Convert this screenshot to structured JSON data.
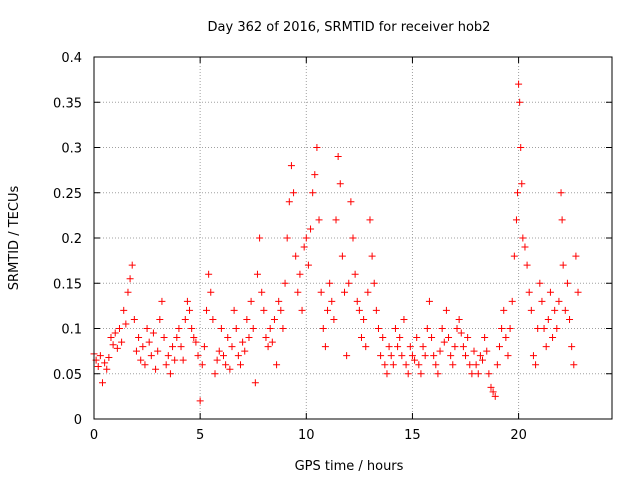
{
  "chart_data": {
    "type": "scatter",
    "title": "Day 362 of 2016, SRMTID for receiver hob2",
    "xlabel": "GPS time / hours",
    "ylabel": "SRMTID / TECUs",
    "xlim": [
      0,
      24.4
    ],
    "ylim": [
      0,
      0.4
    ],
    "xticks": [
      0,
      5,
      10,
      15,
      20
    ],
    "yticks": [
      0,
      0.05,
      0.1,
      0.15,
      0.2,
      0.25,
      0.3,
      0.35,
      0.4
    ],
    "xtick_labels": [
      "0",
      "5",
      "10",
      "15",
      "20"
    ],
    "ytick_labels": [
      "0",
      "0.05",
      "0.1",
      "0.15",
      "0.2",
      "0.25",
      "0.3",
      "0.35",
      "0.4"
    ],
    "grid": true,
    "marker": "plus",
    "series_color": "#ff0000",
    "series": [
      {
        "name": "hob2",
        "points": [
          [
            0.0,
            0.072
          ],
          [
            0.1,
            0.065
          ],
          [
            0.2,
            0.058
          ],
          [
            0.3,
            0.07
          ],
          [
            0.4,
            0.04
          ],
          [
            0.5,
            0.062
          ],
          [
            0.6,
            0.055
          ],
          [
            0.7,
            0.068
          ],
          [
            0.8,
            0.09
          ],
          [
            0.9,
            0.082
          ],
          [
            1.0,
            0.095
          ],
          [
            1.1,
            0.078
          ],
          [
            1.2,
            0.1
          ],
          [
            1.3,
            0.085
          ],
          [
            1.4,
            0.12
          ],
          [
            1.5,
            0.105
          ],
          [
            1.6,
            0.14
          ],
          [
            1.7,
            0.155
          ],
          [
            1.8,
            0.17
          ],
          [
            1.9,
            0.11
          ],
          [
            2.0,
            0.075
          ],
          [
            2.1,
            0.09
          ],
          [
            2.2,
            0.065
          ],
          [
            2.3,
            0.08
          ],
          [
            2.4,
            0.06
          ],
          [
            2.5,
            0.1
          ],
          [
            2.6,
            0.085
          ],
          [
            2.7,
            0.07
          ],
          [
            2.8,
            0.095
          ],
          [
            2.9,
            0.055
          ],
          [
            3.0,
            0.075
          ],
          [
            3.1,
            0.11
          ],
          [
            3.2,
            0.13
          ],
          [
            3.3,
            0.09
          ],
          [
            3.4,
            0.06
          ],
          [
            3.5,
            0.07
          ],
          [
            3.6,
            0.05
          ],
          [
            3.7,
            0.08
          ],
          [
            3.8,
            0.065
          ],
          [
            3.9,
            0.09
          ],
          [
            4.0,
            0.1
          ],
          [
            4.1,
            0.08
          ],
          [
            4.2,
            0.065
          ],
          [
            4.3,
            0.11
          ],
          [
            4.4,
            0.13
          ],
          [
            4.5,
            0.12
          ],
          [
            4.6,
            0.1
          ],
          [
            4.7,
            0.09
          ],
          [
            4.8,
            0.085
          ],
          [
            4.9,
            0.07
          ],
          [
            5.0,
            0.02
          ],
          [
            5.1,
            0.06
          ],
          [
            5.2,
            0.08
          ],
          [
            5.3,
            0.12
          ],
          [
            5.4,
            0.16
          ],
          [
            5.5,
            0.14
          ],
          [
            5.6,
            0.11
          ],
          [
            5.7,
            0.05
          ],
          [
            5.8,
            0.065
          ],
          [
            5.9,
            0.075
          ],
          [
            6.0,
            0.1
          ],
          [
            6.1,
            0.07
          ],
          [
            6.2,
            0.06
          ],
          [
            6.3,
            0.09
          ],
          [
            6.4,
            0.055
          ],
          [
            6.5,
            0.08
          ],
          [
            6.6,
            0.12
          ],
          [
            6.7,
            0.1
          ],
          [
            6.8,
            0.07
          ],
          [
            6.9,
            0.06
          ],
          [
            7.0,
            0.085
          ],
          [
            7.1,
            0.075
          ],
          [
            7.2,
            0.11
          ],
          [
            7.3,
            0.09
          ],
          [
            7.4,
            0.13
          ],
          [
            7.5,
            0.1
          ],
          [
            7.6,
            0.04
          ],
          [
            7.7,
            0.16
          ],
          [
            7.8,
            0.2
          ],
          [
            7.9,
            0.14
          ],
          [
            8.0,
            0.12
          ],
          [
            8.1,
            0.09
          ],
          [
            8.2,
            0.08
          ],
          [
            8.3,
            0.1
          ],
          [
            8.4,
            0.085
          ],
          [
            8.5,
            0.11
          ],
          [
            8.6,
            0.06
          ],
          [
            8.7,
            0.13
          ],
          [
            8.8,
            0.12
          ],
          [
            8.9,
            0.1
          ],
          [
            9.0,
            0.15
          ],
          [
            9.1,
            0.2
          ],
          [
            9.2,
            0.24
          ],
          [
            9.3,
            0.28
          ],
          [
            9.4,
            0.25
          ],
          [
            9.5,
            0.18
          ],
          [
            9.6,
            0.14
          ],
          [
            9.7,
            0.16
          ],
          [
            9.8,
            0.12
          ],
          [
            9.9,
            0.19
          ],
          [
            10.0,
            0.2
          ],
          [
            10.1,
            0.17
          ],
          [
            10.2,
            0.21
          ],
          [
            10.3,
            0.25
          ],
          [
            10.4,
            0.27
          ],
          [
            10.5,
            0.3
          ],
          [
            10.6,
            0.22
          ],
          [
            10.7,
            0.14
          ],
          [
            10.8,
            0.1
          ],
          [
            10.9,
            0.08
          ],
          [
            11.0,
            0.12
          ],
          [
            11.1,
            0.15
          ],
          [
            11.2,
            0.13
          ],
          [
            11.3,
            0.11
          ],
          [
            11.4,
            0.22
          ],
          [
            11.5,
            0.29
          ],
          [
            11.6,
            0.26
          ],
          [
            11.7,
            0.18
          ],
          [
            11.8,
            0.14
          ],
          [
            11.9,
            0.07
          ],
          [
            12.0,
            0.15
          ],
          [
            12.1,
            0.24
          ],
          [
            12.2,
            0.2
          ],
          [
            12.3,
            0.16
          ],
          [
            12.4,
            0.13
          ],
          [
            12.5,
            0.12
          ],
          [
            12.6,
            0.09
          ],
          [
            12.7,
            0.11
          ],
          [
            12.8,
            0.08
          ],
          [
            12.9,
            0.14
          ],
          [
            13.0,
            0.22
          ],
          [
            13.1,
            0.18
          ],
          [
            13.2,
            0.15
          ],
          [
            13.3,
            0.12
          ],
          [
            13.4,
            0.1
          ],
          [
            13.5,
            0.07
          ],
          [
            13.6,
            0.09
          ],
          [
            13.7,
            0.06
          ],
          [
            13.8,
            0.05
          ],
          [
            13.9,
            0.08
          ],
          [
            14.0,
            0.07
          ],
          [
            14.1,
            0.06
          ],
          [
            14.2,
            0.1
          ],
          [
            14.3,
            0.08
          ],
          [
            14.4,
            0.09
          ],
          [
            14.5,
            0.07
          ],
          [
            14.6,
            0.11
          ],
          [
            14.7,
            0.06
          ],
          [
            14.8,
            0.05
          ],
          [
            14.9,
            0.08
          ],
          [
            15.0,
            0.07
          ],
          [
            15.1,
            0.065
          ],
          [
            15.2,
            0.09
          ],
          [
            15.3,
            0.06
          ],
          [
            15.4,
            0.05
          ],
          [
            15.5,
            0.08
          ],
          [
            15.6,
            0.07
          ],
          [
            15.7,
            0.1
          ],
          [
            15.8,
            0.13
          ],
          [
            15.9,
            0.09
          ],
          [
            16.0,
            0.07
          ],
          [
            16.1,
            0.06
          ],
          [
            16.2,
            0.05
          ],
          [
            16.3,
            0.075
          ],
          [
            16.4,
            0.1
          ],
          [
            16.5,
            0.085
          ],
          [
            16.6,
            0.12
          ],
          [
            16.7,
            0.09
          ],
          [
            16.8,
            0.07
          ],
          [
            16.9,
            0.06
          ],
          [
            17.0,
            0.08
          ],
          [
            17.1,
            0.1
          ],
          [
            17.2,
            0.11
          ],
          [
            17.3,
            0.095
          ],
          [
            17.4,
            0.08
          ],
          [
            17.5,
            0.07
          ],
          [
            17.6,
            0.09
          ],
          [
            17.7,
            0.06
          ],
          [
            17.8,
            0.05
          ],
          [
            17.9,
            0.075
          ],
          [
            18.0,
            0.06
          ],
          [
            18.1,
            0.05
          ],
          [
            18.2,
            0.07
          ],
          [
            18.3,
            0.065
          ],
          [
            18.4,
            0.09
          ],
          [
            18.5,
            0.075
          ],
          [
            18.6,
            0.05
          ],
          [
            18.7,
            0.035
          ],
          [
            18.8,
            0.03
          ],
          [
            18.9,
            0.025
          ],
          [
            19.0,
            0.06
          ],
          [
            19.1,
            0.08
          ],
          [
            19.2,
            0.1
          ],
          [
            19.3,
            0.12
          ],
          [
            19.4,
            0.09
          ],
          [
            19.5,
            0.07
          ],
          [
            19.6,
            0.1
          ],
          [
            19.7,
            0.13
          ],
          [
            19.8,
            0.18
          ],
          [
            19.9,
            0.22
          ],
          [
            19.95,
            0.25
          ],
          [
            20.0,
            0.37
          ],
          [
            20.05,
            0.35
          ],
          [
            20.1,
            0.3
          ],
          [
            20.15,
            0.26
          ],
          [
            20.2,
            0.2
          ],
          [
            20.3,
            0.19
          ],
          [
            20.4,
            0.17
          ],
          [
            20.5,
            0.14
          ],
          [
            20.6,
            0.12
          ],
          [
            20.7,
            0.07
          ],
          [
            20.8,
            0.06
          ],
          [
            20.9,
            0.1
          ],
          [
            21.0,
            0.15
          ],
          [
            21.1,
            0.13
          ],
          [
            21.2,
            0.1
          ],
          [
            21.3,
            0.08
          ],
          [
            21.4,
            0.11
          ],
          [
            21.5,
            0.14
          ],
          [
            21.6,
            0.09
          ],
          [
            21.7,
            0.12
          ],
          [
            21.8,
            0.1
          ],
          [
            21.9,
            0.13
          ],
          [
            22.0,
            0.25
          ],
          [
            22.05,
            0.22
          ],
          [
            22.1,
            0.17
          ],
          [
            22.2,
            0.12
          ],
          [
            22.3,
            0.15
          ],
          [
            22.4,
            0.11
          ],
          [
            22.5,
            0.08
          ],
          [
            22.6,
            0.06
          ],
          [
            22.7,
            0.18
          ],
          [
            22.8,
            0.14
          ]
        ]
      }
    ]
  }
}
